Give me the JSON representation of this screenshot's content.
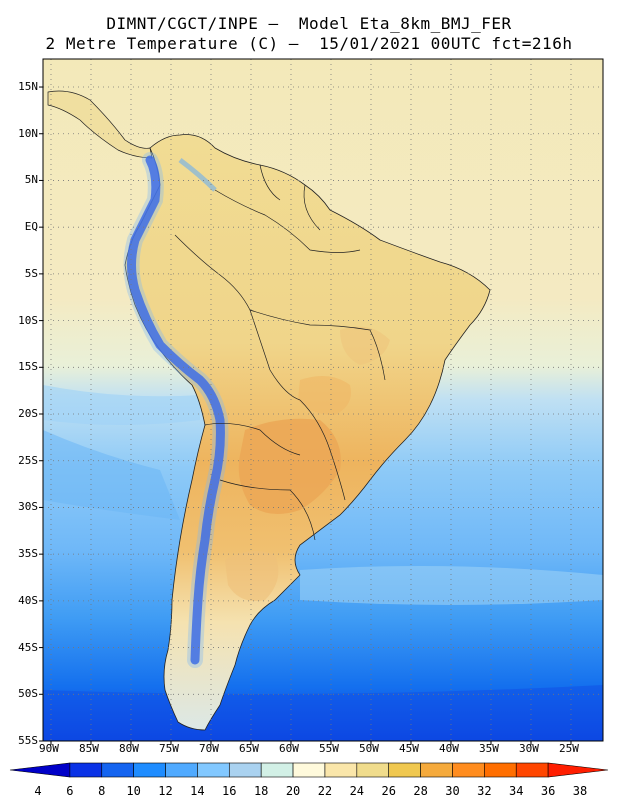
{
  "title": {
    "line1": "DIMNT/CGCT/INPE –  Model Eta_8km_BMJ_FER",
    "line2": "2 Metre Temperature (C) –  15/01/2021 00UTC fct=216h"
  },
  "map": {
    "lat_labels": [
      "15N",
      "10N",
      "5N",
      "EQ",
      "5S",
      "10S",
      "15S",
      "20S",
      "25S",
      "30S",
      "35S",
      "40S",
      "45S",
      "50S",
      "55S"
    ],
    "lon_labels": [
      "90W",
      "85W",
      "80W",
      "75W",
      "70W",
      "65W",
      "60W",
      "55W",
      "50W",
      "45W",
      "40W",
      "35W",
      "30W",
      "25W"
    ],
    "regions": [
      "ocean-north",
      "ocean-central",
      "ocean-south",
      "continent-north",
      "continent-central",
      "continent-south"
    ]
  },
  "colorbar": {
    "ticks": [
      "4",
      "6",
      "8",
      "10",
      "12",
      "14",
      "16",
      "18",
      "20",
      "22",
      "24",
      "26",
      "28",
      "30",
      "32",
      "34",
      "36",
      "38"
    ],
    "colors": [
      "#0000c8",
      "#0a32e6",
      "#1464f0",
      "#1e8cff",
      "#50aaff",
      "#82c8ff",
      "#aad2f0",
      "#d2f0e6",
      "#fffadc",
      "#fae6aa",
      "#f0dc8c",
      "#f0c850",
      "#f5aa3c",
      "#ff8c1e",
      "#ff6e00",
      "#ff4600",
      "#ff1e00"
    ]
  }
}
